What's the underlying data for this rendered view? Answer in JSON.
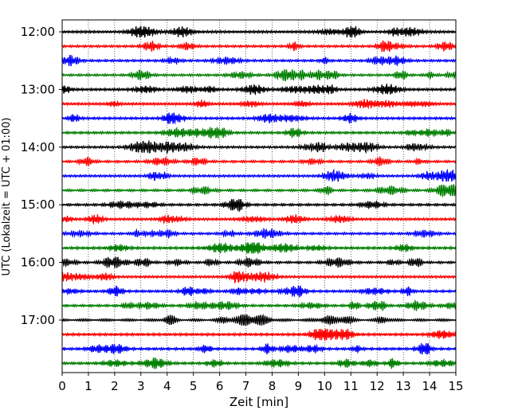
{
  "chart_data": {
    "type": "line",
    "title": "",
    "xlabel": "Zeit  [min]",
    "ylabel": "UTC (Lokalzeit = UTC + 01:00)",
    "xlim": [
      0,
      15
    ],
    "x_ticks": [
      "0",
      "1",
      "2",
      "3",
      "4",
      "5",
      "6",
      "7",
      "8",
      "9",
      "10",
      "11",
      "12",
      "13",
      "14",
      "15"
    ],
    "y_ticks": [
      {
        "label": "12:00",
        "trace": 0
      },
      {
        "label": "13:00",
        "trace": 4
      },
      {
        "label": "14:00",
        "trace": 8
      },
      {
        "label": "15:00",
        "trace": 12
      },
      {
        "label": "16:00",
        "trace": 16
      },
      {
        "label": "17:00",
        "trace": 20
      }
    ],
    "trace_interval_min": 15,
    "trace_count": 24,
    "first_trace": "12:00",
    "trace_colors": [
      "#000000",
      "#ff0000",
      "#0000ff",
      "#007f00"
    ],
    "grid": "vertical dotted lines at each minute"
  }
}
